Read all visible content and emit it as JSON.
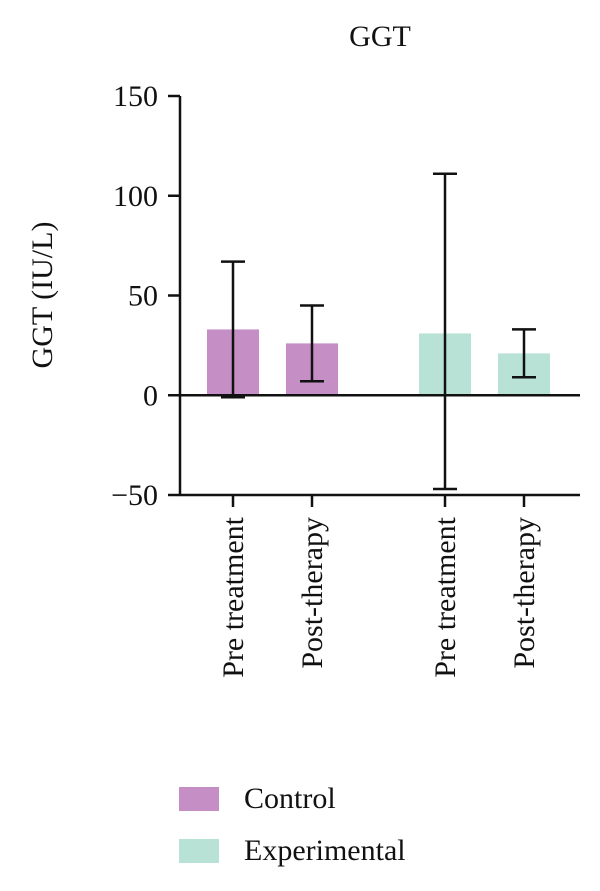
{
  "chart_data": {
    "type": "bar",
    "title": "GGT",
    "ylabel": "GGT (IU/L)",
    "xlabel": "",
    "ylim": [
      -50,
      150
    ],
    "yticks": [
      {
        "value": 150,
        "label": "150"
      },
      {
        "value": 100,
        "label": "100"
      },
      {
        "value": 50,
        "label": "50"
      },
      {
        "value": 0,
        "label": "0"
      },
      {
        "value": -50,
        "label": "−50"
      }
    ],
    "categories": [
      "Pre treatment",
      "Post-therapy",
      "Pre treatment",
      "Post-therapy"
    ],
    "bars": [
      {
        "category": "Pre treatment",
        "group": "Control",
        "value": 33,
        "err_low": -1,
        "err_high": 67
      },
      {
        "category": "Post-therapy",
        "group": "Control",
        "value": 26,
        "err_low": 7,
        "err_high": 45
      },
      {
        "category": "Pre treatment",
        "group": "Experimental",
        "value": 31,
        "err_low": -47,
        "err_high": 111
      },
      {
        "category": "Post-therapy",
        "group": "Experimental",
        "value": 21,
        "err_low": 9,
        "err_high": 33
      }
    ],
    "legend": [
      {
        "name": "Control",
        "color": "#c58fc6"
      },
      {
        "name": "Experimental",
        "color": "#b9e2d6"
      }
    ],
    "legend_position": "bottom-left",
    "grid": false
  }
}
